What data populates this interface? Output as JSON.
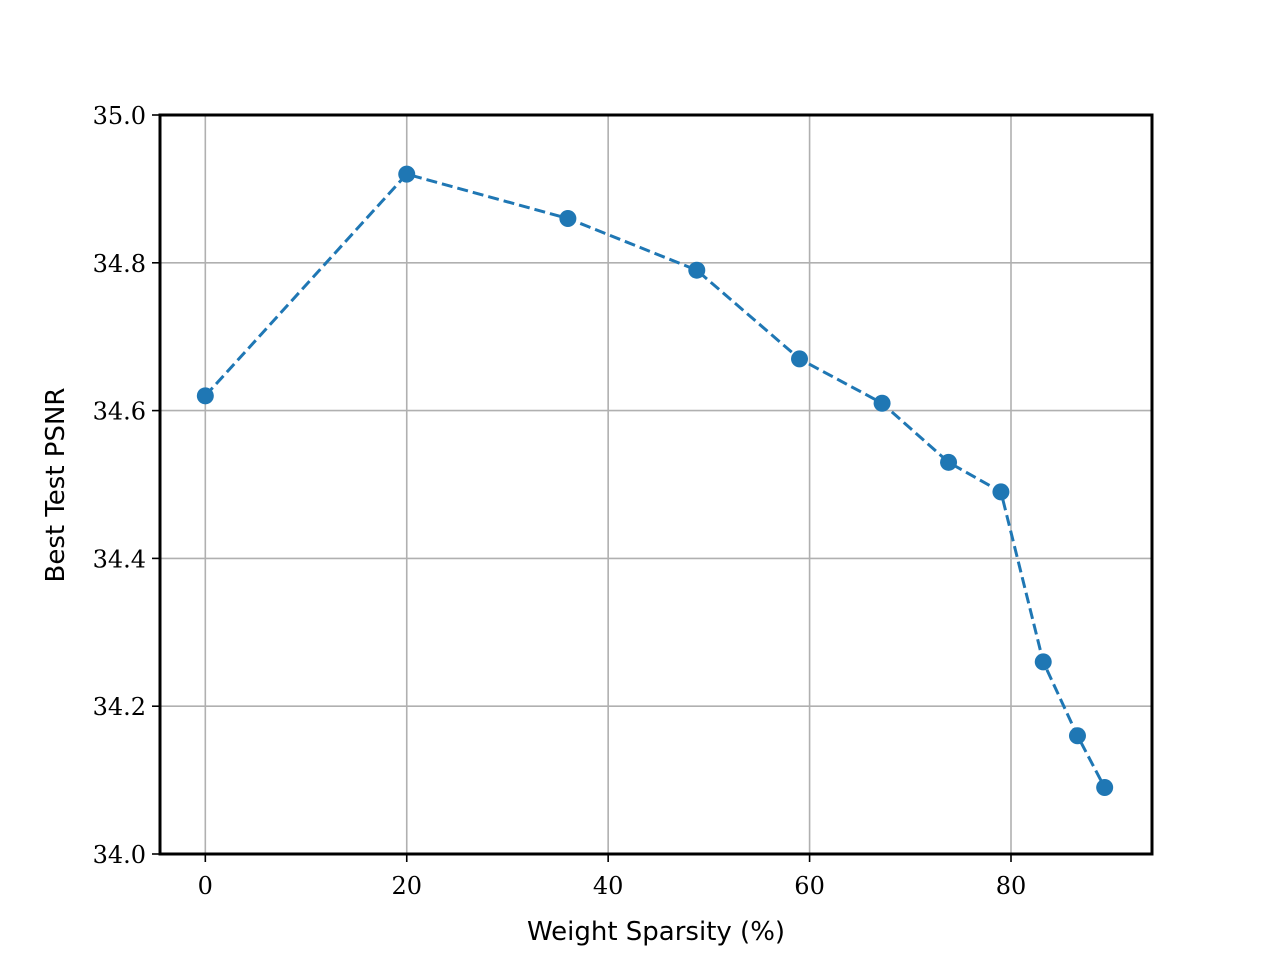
{
  "chart_data": {
    "type": "line",
    "title": "",
    "xlabel": "Weight Sparsity (%)",
    "ylabel": "Best Test PSNR",
    "xlim": [
      -4.5,
      94
    ],
    "ylim": [
      34.0,
      35.0
    ],
    "x_ticks": [
      0,
      20,
      40,
      60,
      80
    ],
    "x_tick_labels": [
      "0",
      "20",
      "40",
      "60",
      "80"
    ],
    "y_ticks": [
      34.0,
      34.2,
      34.4,
      34.6,
      34.8,
      35.0
    ],
    "y_tick_labels": [
      "34.0",
      "34.2",
      "34.4",
      "34.6",
      "34.8",
      "35.0"
    ],
    "grid": true,
    "legend": "none",
    "series": [
      {
        "color": "#1f77b4",
        "line_style": "dashed",
        "marker": "circle",
        "x": [
          0,
          20,
          36,
          48.8,
          59,
          67.2,
          73.8,
          79,
          83.2,
          86.6,
          89.3
        ],
        "y": [
          34.62,
          34.92,
          34.86,
          34.79,
          34.67,
          34.61,
          34.53,
          34.49,
          34.26,
          34.16,
          34.09
        ]
      }
    ]
  }
}
